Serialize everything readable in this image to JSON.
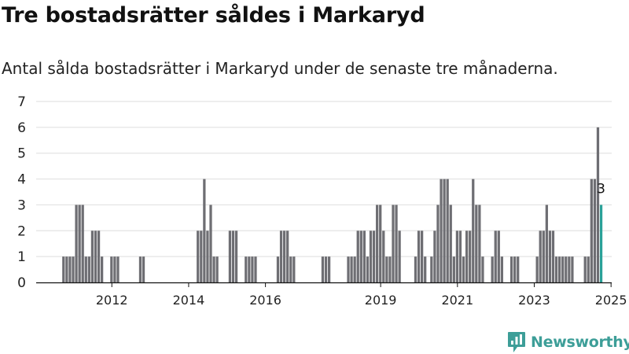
{
  "header": {
    "title": "Tre bostadsrätter såldes i Markaryd",
    "subtitle": "Antal sålda bostadsrätter i Markaryd under de senaste tre månaderna."
  },
  "brand": {
    "name": "Newsworthy",
    "icon": "newsworthy-logo-icon"
  },
  "colors": {
    "bar": "#6e6e73",
    "highlight": "#2aa198",
    "grid": "#dedede",
    "axis": "#111111"
  },
  "chart_data": {
    "type": "bar",
    "title": "Tre bostadsrätter såldes i Markaryd",
    "subtitle": "Antal sålda bostadsrätter i Markaryd under de senaste tre månaderna.",
    "xlabel": "",
    "ylabel": "",
    "ylim": [
      0,
      7
    ],
    "yticks": [
      "0",
      "1",
      "2",
      "3",
      "4",
      "5",
      "6",
      "7"
    ],
    "xticks": [
      "2012",
      "2014",
      "2016",
      "2019",
      "2021",
      "2023",
      "2025"
    ],
    "grid": true,
    "bar_period": "monthly",
    "highlight_label": "3",
    "values": [
      0,
      0,
      0,
      0,
      0,
      0,
      0,
      0,
      1,
      1,
      1,
      1,
      3,
      3,
      3,
      1,
      1,
      2,
      2,
      2,
      1,
      0,
      0,
      1,
      1,
      1,
      0,
      0,
      0,
      0,
      0,
      0,
      1,
      1,
      0,
      0,
      0,
      0,
      0,
      0,
      0,
      0,
      0,
      0,
      0,
      0,
      0,
      0,
      0,
      0,
      2,
      2,
      4,
      2,
      3,
      1,
      1,
      0,
      0,
      0,
      2,
      2,
      2,
      0,
      0,
      1,
      1,
      1,
      1,
      0,
      0,
      0,
      0,
      0,
      0,
      1,
      2,
      2,
      2,
      1,
      1,
      0,
      0,
      0,
      0,
      0,
      0,
      0,
      0,
      1,
      1,
      1,
      0,
      0,
      0,
      0,
      0,
      1,
      1,
      1,
      2,
      2,
      2,
      1,
      2,
      2,
      3,
      3,
      2,
      1,
      1,
      3,
      3,
      2,
      0,
      0,
      0,
      0,
      1,
      2,
      2,
      1,
      0,
      1,
      2,
      3,
      4,
      4,
      4,
      3,
      1,
      2,
      2,
      1,
      2,
      2,
      4,
      3,
      3,
      1,
      0,
      0,
      1,
      2,
      2,
      1,
      0,
      0,
      1,
      1,
      1,
      0,
      0,
      0,
      0,
      0,
      1,
      2,
      2,
      3,
      2,
      2,
      1,
      1,
      1,
      1,
      1,
      1,
      0,
      0,
      0,
      1,
      1,
      4,
      4,
      6,
      3
    ]
  }
}
